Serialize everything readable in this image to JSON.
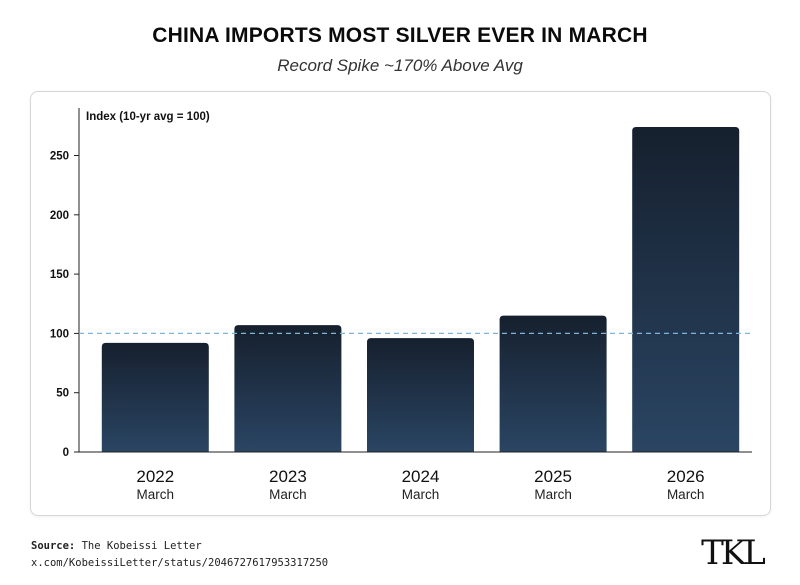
{
  "header": {
    "title": "CHINA IMPORTS MOST SILVER EVER IN MARCH",
    "subtitle": "Record Spike ~170% Above Avg"
  },
  "footer": {
    "source_label": "Source:",
    "source_value": "The Kobeissi Letter",
    "url": "x.com/KobeissiLetter/status/2046727617953317250",
    "logo_text": "TKL"
  },
  "chart_data": {
    "type": "bar",
    "ylabel": "Index (10-yr avg = 100)",
    "categories": [
      "2022",
      "2023",
      "2024",
      "2025",
      "2026"
    ],
    "sublabels": [
      "March",
      "March",
      "March",
      "March",
      "March"
    ],
    "values": [
      92,
      107,
      96,
      115,
      274
    ],
    "ylim": [
      0,
      285
    ],
    "yticks": [
      0,
      50,
      100,
      150,
      200,
      250
    ],
    "reference_line": {
      "value": 100,
      "style": "dashed",
      "color": "#7db6d8"
    },
    "bar_gradient": [
      "#16202e",
      "#2a4563"
    ],
    "grid": false
  }
}
